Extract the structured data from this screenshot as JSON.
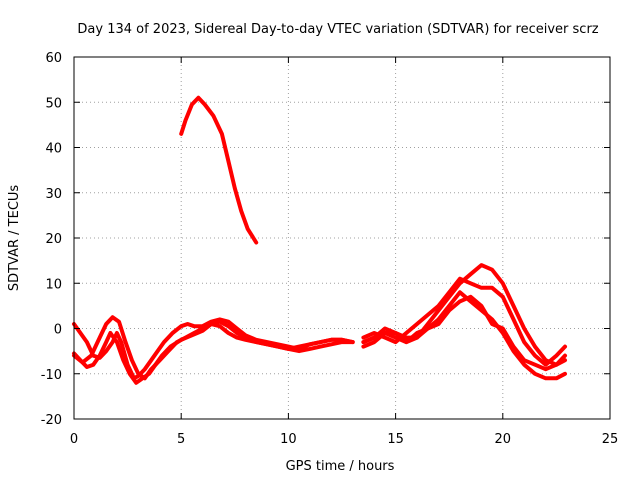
{
  "chart_data": {
    "type": "line",
    "title": "Day 134 of 2023, Sidereal Day-to-day VTEC variation (SDTVAR) for receiver scrz",
    "xlabel": "GPS time / hours",
    "ylabel": "SDTVAR / TECUs",
    "xlim": [
      0,
      25
    ],
    "ylim": [
      -20,
      60
    ],
    "xticks": [
      0,
      5,
      10,
      15,
      20,
      25
    ],
    "yticks": [
      -20,
      -10,
      0,
      10,
      20,
      30,
      40,
      50,
      60
    ],
    "grid": true,
    "color": "#ff0000",
    "series": [
      {
        "name": "trace-1",
        "x": [
          0,
          0.3,
          0.6,
          0.9,
          1.2,
          1.5,
          1.8,
          2.0,
          2.2,
          2.5,
          2.8,
          3.0,
          3.3,
          3.6,
          3.9,
          4.2,
          4.6,
          5.0,
          5.3,
          5.6,
          6.0,
          6.4,
          6.8,
          7.2,
          7.6,
          8.0,
          8.5,
          9.0,
          9.5,
          10.0,
          10.5,
          11.0,
          11.5,
          12.0,
          12.5,
          13.0
        ],
        "y": [
          1,
          -1,
          -3,
          -6,
          -6.5,
          -5,
          -3,
          -1,
          -3,
          -8,
          -11,
          -10.5,
          -9,
          -7,
          -5,
          -3,
          -1,
          0.5,
          1,
          0.5,
          0.5,
          1.5,
          2,
          1.5,
          0,
          -1.5,
          -2.5,
          -3,
          -3.5,
          -4,
          -4.5,
          -3.5,
          -3,
          -2.5,
          -2.5,
          -3
        ]
      },
      {
        "name": "trace-2",
        "x": [
          0,
          0.3,
          0.6,
          0.9,
          1.2,
          1.5,
          1.7,
          2.0,
          2.3,
          2.6,
          2.9,
          3.2,
          3.5,
          3.8,
          4.1,
          4.5,
          5.0,
          5.5,
          6.0,
          6.4,
          6.8,
          7.2,
          7.6,
          8.0,
          8.5,
          9.0,
          9.5,
          10.0,
          10.5,
          11.0,
          11.5,
          12.0,
          12.5,
          13.0
        ],
        "y": [
          -5.5,
          -7,
          -8.5,
          -8,
          -6,
          -3,
          -1,
          -3,
          -7,
          -10,
          -12,
          -11,
          -10,
          -8,
          -6,
          -4,
          -2.5,
          -1.5,
          -0.5,
          1,
          1.5,
          0.5,
          -1,
          -2,
          -3,
          -3.5,
          -4,
          -4.5,
          -5,
          -4.5,
          -4,
          -3.5,
          -3,
          -3
        ]
      },
      {
        "name": "trace-3",
        "x": [
          0,
          0.4,
          0.8,
          1.2,
          1.5,
          1.8,
          2.1,
          2.4,
          2.7,
          3.0,
          3.3,
          3.6,
          4.0,
          4.4,
          4.8,
          5.2,
          5.6,
          6.0,
          6.4,
          6.8,
          7.2,
          7.6,
          8.0,
          8.5,
          9.0,
          9.5,
          10.0,
          10.5,
          11.0,
          11.5,
          12.0,
          12.5,
          13.0
        ],
        "y": [
          -6,
          -7.5,
          -6,
          -2,
          1,
          2.5,
          1.5,
          -3,
          -7,
          -10,
          -11,
          -9,
          -7,
          -5,
          -3,
          -2,
          -1,
          0,
          1,
          0.5,
          -1,
          -2,
          -2.5,
          -3,
          -3.5,
          -4,
          -4.5,
          -4,
          -3.5,
          -3,
          -2.5,
          -2.5,
          -3
        ]
      },
      {
        "name": "trace-4",
        "x": [
          5.0,
          5.2,
          5.5,
          5.8,
          6.1,
          6.5,
          6.9,
          7.2,
          7.5,
          7.8,
          8.1,
          8.5
        ],
        "y": [
          43,
          46,
          49.5,
          51,
          49.5,
          47,
          43,
          37,
          31,
          26,
          22,
          19
        ]
      },
      {
        "name": "trace-5",
        "x": [
          13.5,
          14,
          14.5,
          15,
          15.5,
          16,
          16.5,
          17,
          17.5,
          18,
          18.5,
          19,
          19.5,
          20,
          20.5,
          21,
          21.5,
          22,
          22.5,
          22.9
        ],
        "y": [
          -3,
          -2,
          -1,
          -2,
          -3,
          -1,
          0,
          2,
          5,
          8,
          6,
          4,
          2,
          -1,
          -5,
          -8,
          -10,
          -11,
          -11,
          -10
        ]
      },
      {
        "name": "trace-6",
        "x": [
          13.5,
          14,
          14.5,
          15,
          15.5,
          16,
          16.5,
          17,
          17.5,
          18,
          18.5,
          19,
          19.5,
          20,
          20.5,
          21,
          21.5,
          22,
          22.5,
          22.9
        ],
        "y": [
          -4,
          -3,
          -1,
          -1,
          -2,
          -2,
          0,
          1,
          4,
          6,
          7,
          5,
          1,
          0,
          -4,
          -7,
          -8,
          -9,
          -8,
          -7
        ]
      },
      {
        "name": "trace-7",
        "x": [
          13.5,
          14,
          14.5,
          15,
          15.5,
          16,
          16.5,
          17,
          17.5,
          18,
          18.5,
          19,
          19.5,
          20,
          20.5,
          21,
          21.5,
          22,
          22.5,
          22.9
        ],
        "y": [
          -2,
          -1,
          -2,
          -3,
          -1,
          1,
          3,
          5,
          8,
          11,
          10,
          9,
          9,
          7,
          2,
          -3,
          -6,
          -8,
          -6,
          -4
        ]
      },
      {
        "name": "trace-8",
        "x": [
          13.5,
          14,
          14.5,
          15,
          15.5,
          16,
          16.5,
          17,
          17.5,
          18,
          18.5,
          19,
          19.5,
          20,
          20.5,
          21,
          21.5,
          22,
          22.5,
          22.9
        ],
        "y": [
          -3,
          -2,
          0,
          -1,
          -3,
          -2,
          1,
          4,
          7,
          10,
          12,
          14,
          13,
          10,
          5,
          0,
          -4,
          -7,
          -8,
          -6
        ]
      }
    ]
  }
}
